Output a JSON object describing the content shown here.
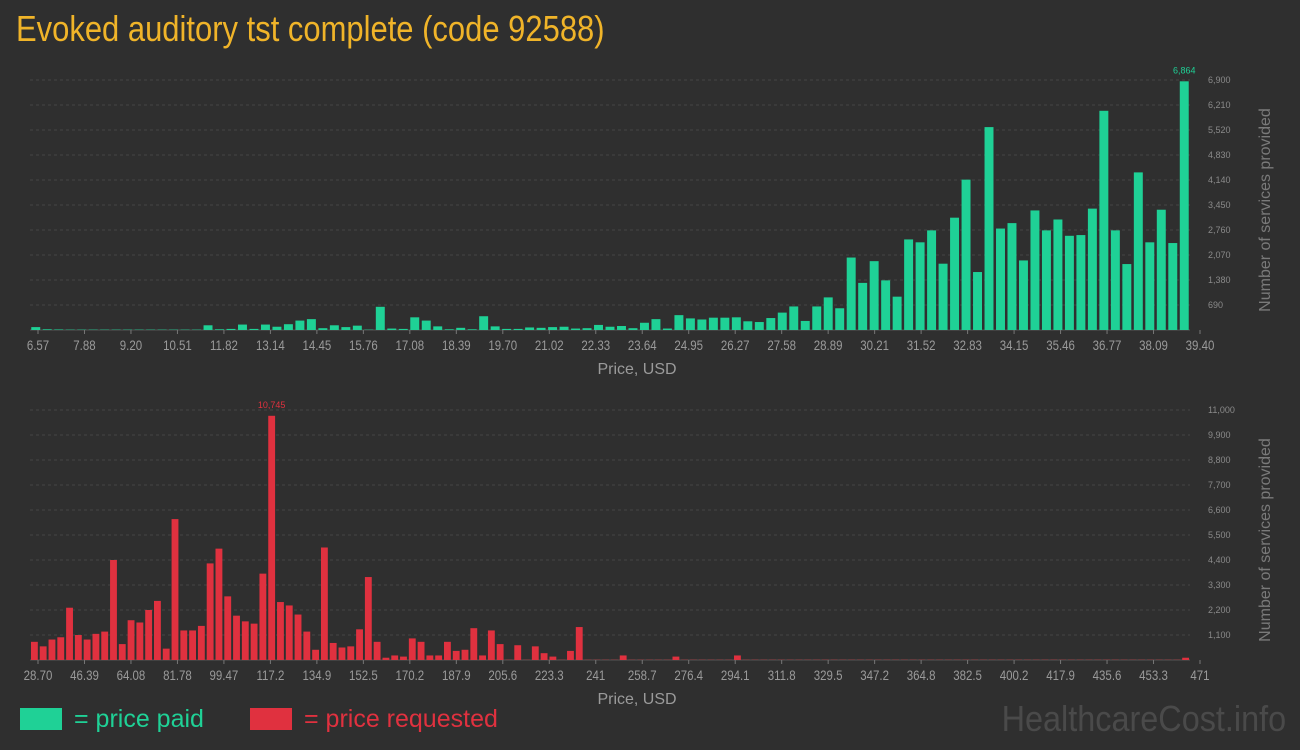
{
  "title": "Evoked auditory tst complete (code 92588)",
  "legend": {
    "paid_label": "= price paid",
    "requested_label": "= price requested"
  },
  "watermark": "HealthcareCost.info",
  "colors": {
    "paid": "#1fd196",
    "requested": "#e0313f",
    "title": "#f0b429",
    "background": "#2f2f2f"
  },
  "chart_data": [
    {
      "type": "bar",
      "name": "price paid",
      "xlabel": "Price, USD",
      "ylabel": "Number of services provided",
      "xlim": [
        6.57,
        39.4
      ],
      "ylim": [
        0,
        6900
      ],
      "x_ticks": [
        "6.57",
        "7.88",
        "9.20",
        "10.51",
        "11.82",
        "13.14",
        "14.45",
        "15.76",
        "17.08",
        "18.39",
        "19.70",
        "21.02",
        "22.33",
        "23.64",
        "24.95",
        "26.27",
        "27.58",
        "28.89",
        "30.21",
        "31.52",
        "32.83",
        "34.15",
        "35.46",
        "36.77",
        "38.09",
        "39.40"
      ],
      "y_ticks": [
        690,
        1380,
        2070,
        2760,
        3450,
        4140,
        4830,
        5520,
        6210,
        6900
      ],
      "y_tick_labels": [
        "690",
        "1,380",
        "2,070",
        "2,760",
        "3,450",
        "4,140",
        "4,830",
        "5,520",
        "6,210",
        "6,900"
      ],
      "max_label": "6,864",
      "values": [
        80,
        20,
        15,
        10,
        10,
        10,
        10,
        10,
        10,
        10,
        10,
        10,
        10,
        10,
        10,
        130,
        20,
        30,
        150,
        30,
        150,
        90,
        160,
        260,
        300,
        50,
        130,
        80,
        120,
        10,
        640,
        40,
        30,
        350,
        260,
        100,
        20,
        60,
        20,
        380,
        100,
        30,
        30,
        70,
        60,
        80,
        90,
        40,
        50,
        140,
        90,
        110,
        50,
        200,
        300,
        40,
        410,
        320,
        290,
        340,
        340,
        350,
        240,
        220,
        330,
        480,
        650,
        250,
        650,
        900,
        600,
        2000,
        1300,
        1900,
        1370,
        920,
        2500,
        2420,
        2750,
        1830,
        3100,
        4150,
        1600,
        5600,
        2800,
        2950,
        1920,
        3300,
        2750,
        3050,
        2600,
        2620,
        3350,
        6050,
        2750,
        1820,
        4350,
        2420,
        3320,
        2400,
        6864
      ]
    },
    {
      "type": "bar",
      "name": "price requested",
      "xlabel": "Price, USD",
      "ylabel": "Number of services provided",
      "xlim": [
        28.7,
        471
      ],
      "ylim": [
        0,
        11000
      ],
      "x_ticks": [
        "28.70",
        "46.39",
        "64.08",
        "81.78",
        "99.47",
        "117.2",
        "134.9",
        "152.5",
        "170.2",
        "187.9",
        "205.6",
        "223.3",
        "241",
        "258.7",
        "276.4",
        "294.1",
        "311.8",
        "329.5",
        "347.2",
        "364.8",
        "382.5",
        "400.2",
        "417.9",
        "435.6",
        "453.3",
        "471"
      ],
      "y_ticks": [
        1100,
        2200,
        3300,
        4400,
        5500,
        6600,
        7700,
        8800,
        9900,
        11000
      ],
      "y_tick_labels": [
        "1,100",
        "2,200",
        "3,300",
        "4,400",
        "5,500",
        "6,600",
        "7,700",
        "8,800",
        "9,900",
        "11,000"
      ],
      "max_label": "10,745",
      "values": [
        800,
        600,
        900,
        1000,
        2300,
        1100,
        900,
        1150,
        1250,
        4400,
        700,
        1750,
        1650,
        2200,
        2600,
        500,
        6200,
        1300,
        1300,
        1500,
        4250,
        4900,
        2800,
        1950,
        1700,
        1600,
        3800,
        10745,
        2550,
        2400,
        2000,
        1250,
        450,
        4950,
        750,
        550,
        600,
        1350,
        3650,
        800,
        100,
        200,
        150,
        950,
        800,
        200,
        200,
        800,
        400,
        450,
        1400,
        200,
        1300,
        700,
        10,
        650,
        10,
        600,
        300,
        150,
        10,
        400,
        1450,
        10,
        10,
        10,
        10,
        200,
        10,
        10,
        10,
        10,
        10,
        150,
        10,
        10,
        10,
        10,
        10,
        10,
        200,
        10,
        10,
        10,
        10,
        10,
        10,
        10,
        10,
        10,
        10,
        10,
        10,
        10,
        10,
        10,
        10,
        10,
        10,
        10,
        10,
        10,
        10,
        10,
        10,
        10,
        10,
        10,
        10,
        10,
        10,
        10,
        10,
        10,
        10,
        10,
        10,
        10,
        10,
        10,
        10,
        10,
        10,
        10,
        10,
        10,
        10,
        10,
        10,
        10,
        10,
        100
      ]
    }
  ]
}
